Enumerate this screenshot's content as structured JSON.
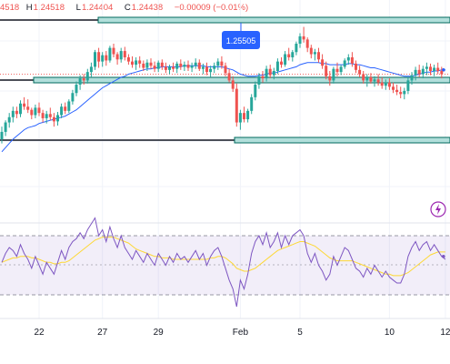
{
  "header": {
    "open_label": "",
    "open_value": "4518",
    "high_label": "H",
    "high_value": "1.24518",
    "low_label": "L",
    "low_value": "1.24404",
    "close_label": "C",
    "close_value": "1.24438",
    "change": "−0.00009 (−0.01%)"
  },
  "chart_data": {
    "type": "candlestick",
    "price_label": "1.25505",
    "x_tick_labels": [
      "22",
      "27",
      "29",
      "Feb",
      "5",
      "10",
      "12"
    ],
    "x_tick_index": [
      10,
      27,
      42,
      64,
      80,
      104,
      119
    ],
    "ohlc": [
      [
        1.2393,
        1.2405,
        1.2389,
        1.24
      ],
      [
        1.24,
        1.2411,
        1.2396,
        1.2409
      ],
      [
        1.2409,
        1.2418,
        1.2404,
        1.2414
      ],
      [
        1.2414,
        1.2424,
        1.2409,
        1.242
      ],
      [
        1.242,
        1.2424,
        1.2413,
        1.2417
      ],
      [
        1.2417,
        1.243,
        1.2414,
        1.2427
      ],
      [
        1.2427,
        1.2433,
        1.2421,
        1.2424
      ],
      [
        1.2424,
        1.2431,
        1.2418,
        1.2421
      ],
      [
        1.2421,
        1.2423,
        1.2412,
        1.2416
      ],
      [
        1.2416,
        1.2426,
        1.2413,
        1.2423
      ],
      [
        1.2423,
        1.2428,
        1.2415,
        1.2418
      ],
      [
        1.2418,
        1.2421,
        1.2409,
        1.2413
      ],
      [
        1.2413,
        1.242,
        1.2408,
        1.2417
      ],
      [
        1.2417,
        1.2423,
        1.2411,
        1.2414
      ],
      [
        1.2414,
        1.2418,
        1.2405,
        1.241
      ],
      [
        1.241,
        1.2419,
        1.2406,
        1.2416
      ],
      [
        1.2416,
        1.2427,
        1.2413,
        1.2424
      ],
      [
        1.2424,
        1.2428,
        1.2417,
        1.242
      ],
      [
        1.242,
        1.2431,
        1.2418,
        1.2429
      ],
      [
        1.2429,
        1.244,
        1.2426,
        1.2437
      ],
      [
        1.2437,
        1.2448,
        1.2434,
        1.2445
      ],
      [
        1.2445,
        1.2454,
        1.244,
        1.2451
      ],
      [
        1.2451,
        1.2455,
        1.2445,
        1.2449
      ],
      [
        1.2449,
        1.246,
        1.2446,
        1.2457
      ],
      [
        1.2457,
        1.2466,
        1.2452,
        1.2462
      ],
      [
        1.2462,
        1.2478,
        1.2459,
        1.2476
      ],
      [
        1.2476,
        1.248,
        1.2461,
        1.2467
      ],
      [
        1.2467,
        1.2476,
        1.2462,
        1.2473
      ],
      [
        1.2473,
        1.2477,
        1.2463,
        1.2468
      ],
      [
        1.2468,
        1.2482,
        1.2466,
        1.248
      ],
      [
        1.248,
        1.2484,
        1.2471,
        1.2474
      ],
      [
        1.2474,
        1.2476,
        1.2464,
        1.2469
      ],
      [
        1.2469,
        1.248,
        1.2466,
        1.2477
      ],
      [
        1.2477,
        1.2481,
        1.2468,
        1.2471
      ],
      [
        1.2471,
        1.2474,
        1.2464,
        1.2467
      ],
      [
        1.2467,
        1.2472,
        1.2461,
        1.2464
      ],
      [
        1.2464,
        1.2471,
        1.2459,
        1.2468
      ],
      [
        1.2468,
        1.2472,
        1.2461,
        1.2465
      ],
      [
        1.2465,
        1.2468,
        1.2458,
        1.2461
      ],
      [
        1.2461,
        1.2469,
        1.2458,
        1.2466
      ],
      [
        1.2466,
        1.247,
        1.246,
        1.2463
      ],
      [
        1.2463,
        1.2467,
        1.2457,
        1.246
      ],
      [
        1.246,
        1.2468,
        1.2457,
        1.2466
      ],
      [
        1.2466,
        1.2469,
        1.2459,
        1.2462
      ],
      [
        1.2462,
        1.2466,
        1.2456,
        1.2459
      ],
      [
        1.2459,
        1.2464,
        1.2455,
        1.2462
      ],
      [
        1.2462,
        1.2466,
        1.2457,
        1.246
      ],
      [
        1.246,
        1.2467,
        1.2456,
        1.2465
      ],
      [
        1.2465,
        1.2469,
        1.2459,
        1.2462
      ],
      [
        1.2462,
        1.2467,
        1.2458,
        1.2464
      ],
      [
        1.2464,
        1.2468,
        1.2458,
        1.2461
      ],
      [
        1.2461,
        1.2466,
        1.2457,
        1.2463
      ],
      [
        1.2463,
        1.247,
        1.246,
        1.2466
      ],
      [
        1.2466,
        1.2469,
        1.2458,
        1.246
      ],
      [
        1.246,
        1.2465,
        1.2455,
        1.2462
      ],
      [
        1.2462,
        1.2466,
        1.2454,
        1.2457
      ],
      [
        1.2457,
        1.2463,
        1.2452,
        1.246
      ],
      [
        1.246,
        1.2466,
        1.2456,
        1.2463
      ],
      [
        1.2463,
        1.247,
        1.2459,
        1.2467
      ],
      [
        1.2467,
        1.2472,
        1.246,
        1.2463
      ],
      [
        1.2463,
        1.2466,
        1.2453,
        1.2456
      ],
      [
        1.2456,
        1.246,
        1.2447,
        1.2449
      ],
      [
        1.2449,
        1.2453,
        1.2438,
        1.2441
      ],
      [
        1.2441,
        1.2446,
        1.2405,
        1.2409
      ],
      [
        1.2409,
        1.2421,
        1.2402,
        1.2418
      ],
      [
        1.2418,
        1.2424,
        1.2409,
        1.2412
      ],
      [
        1.2412,
        1.2422,
        1.2409,
        1.242
      ],
      [
        1.242,
        1.2436,
        1.2417,
        1.2433
      ],
      [
        1.2433,
        1.2448,
        1.243,
        1.2445
      ],
      [
        1.2445,
        1.2456,
        1.2441,
        1.2453
      ],
      [
        1.2453,
        1.2458,
        1.2447,
        1.2451
      ],
      [
        1.2451,
        1.2463,
        1.2448,
        1.246
      ],
      [
        1.246,
        1.2464,
        1.2451,
        1.2454
      ],
      [
        1.2454,
        1.2461,
        1.245,
        1.2458
      ],
      [
        1.2458,
        1.247,
        1.2455,
        1.2467
      ],
      [
        1.2467,
        1.2471,
        1.2461,
        1.2464
      ],
      [
        1.2464,
        1.2477,
        1.2462,
        1.2474
      ],
      [
        1.2474,
        1.248,
        1.2468,
        1.2471
      ],
      [
        1.2471,
        1.2478,
        1.2467,
        1.2476
      ],
      [
        1.2476,
        1.2486,
        1.2473,
        1.2484
      ],
      [
        1.2484,
        1.2494,
        1.248,
        1.2491
      ],
      [
        1.2491,
        1.25,
        1.2485,
        1.2488
      ],
      [
        1.2488,
        1.249,
        1.2476,
        1.248
      ],
      [
        1.248,
        1.2483,
        1.247,
        1.2474
      ],
      [
        1.2474,
        1.2479,
        1.2468,
        1.2476
      ],
      [
        1.2476,
        1.248,
        1.2466,
        1.2469
      ],
      [
        1.2469,
        1.2474,
        1.246,
        1.2463
      ],
      [
        1.2463,
        1.2467,
        1.245,
        1.2453
      ],
      [
        1.2453,
        1.2458,
        1.2444,
        1.2449
      ],
      [
        1.2449,
        1.2462,
        1.2446,
        1.246
      ],
      [
        1.246,
        1.2466,
        1.2453,
        1.2457
      ],
      [
        1.2457,
        1.2464,
        1.2454,
        1.2462
      ],
      [
        1.2462,
        1.247,
        1.246,
        1.2468
      ],
      [
        1.2468,
        1.2474,
        1.2464,
        1.2471
      ],
      [
        1.2471,
        1.2476,
        1.2462,
        1.2465
      ],
      [
        1.2465,
        1.2468,
        1.2456,
        1.2459
      ],
      [
        1.2459,
        1.2463,
        1.2452,
        1.2455
      ],
      [
        1.2455,
        1.2458,
        1.2446,
        1.2449
      ],
      [
        1.2449,
        1.2455,
        1.2443,
        1.2452
      ],
      [
        1.2452,
        1.2456,
        1.2446,
        1.2448
      ],
      [
        1.2448,
        1.2453,
        1.2443,
        1.245
      ],
      [
        1.245,
        1.2455,
        1.2444,
        1.2447
      ],
      [
        1.2447,
        1.2452,
        1.2441,
        1.2444
      ],
      [
        1.2444,
        1.245,
        1.244,
        1.2447
      ],
      [
        1.2447,
        1.2451,
        1.244,
        1.2443
      ],
      [
        1.2443,
        1.2447,
        1.2437,
        1.244
      ],
      [
        1.244,
        1.2445,
        1.2435,
        1.2438
      ],
      [
        1.2438,
        1.2443,
        1.2432,
        1.2436
      ],
      [
        1.2436,
        1.2442,
        1.2431,
        1.2439
      ],
      [
        1.2439,
        1.2452,
        1.2436,
        1.2449
      ],
      [
        1.2449,
        1.2457,
        1.2445,
        1.2454
      ],
      [
        1.2454,
        1.2462,
        1.2449,
        1.2459
      ],
      [
        1.2459,
        1.2464,
        1.2452,
        1.2455
      ],
      [
        1.2455,
        1.2463,
        1.2451,
        1.246
      ],
      [
        1.246,
        1.2466,
        1.2454,
        1.2462
      ],
      [
        1.2462,
        1.2465,
        1.2454,
        1.2458
      ],
      [
        1.2458,
        1.2464,
        1.2453,
        1.2461
      ],
      [
        1.2461,
        1.2466,
        1.2455,
        1.2458
      ],
      [
        1.2458,
        1.2462,
        1.2451,
        1.2455
      ]
    ],
    "ma": [
      1.2381,
      1.2385,
      1.2389,
      1.2393,
      1.2396,
      1.2399,
      1.2402,
      1.2404,
      1.2405,
      1.2406,
      1.2408,
      1.2409,
      1.241,
      1.2411,
      1.2412,
      1.2413,
      1.2414,
      1.2415,
      1.2417,
      1.2419,
      1.2421,
      1.2424,
      1.2427,
      1.243,
      1.2433,
      1.2436,
      1.2439,
      1.2442,
      1.2444,
      1.2446,
      1.2448,
      1.245,
      1.2452,
      1.2453,
      1.2455,
      1.2456,
      1.2457,
      1.2458,
      1.2459,
      1.246,
      1.246,
      1.2461,
      1.2461,
      1.2462,
      1.2462,
      1.2462,
      1.2462,
      1.2462,
      1.2462,
      1.2463,
      1.2463,
      1.2463,
      1.2463,
      1.2463,
      1.2463,
      1.2462,
      1.2462,
      1.2462,
      1.2462,
      1.2462,
      1.2461,
      1.246,
      1.2459,
      1.2457,
      1.2455,
      1.2454,
      1.2453,
      1.2453,
      1.2453,
      1.2454,
      1.2454,
      1.2455,
      1.2456,
      1.2456,
      1.2457,
      1.2458,
      1.2459,
      1.246,
      1.2461,
      1.2462,
      1.2464,
      1.2465,
      1.2466,
      1.2466,
      1.2466,
      1.2466,
      1.2465,
      1.2465,
      1.2464,
      1.2464,
      1.2464,
      1.2464,
      1.2464,
      1.2465,
      1.2465,
      1.2464,
      1.2464,
      1.2463,
      1.2462,
      1.2461,
      1.2461,
      1.246,
      1.2459,
      1.2458,
      1.2457,
      1.2456,
      1.2455,
      1.2454,
      1.2453,
      1.2453,
      1.2453,
      1.2454,
      1.2455,
      1.2456,
      1.2457,
      1.2457,
      1.2458,
      1.2458,
      1.2459,
      1.2459
    ],
    "rsi": [
      52,
      58,
      62,
      60,
      56,
      64,
      58,
      54,
      48,
      56,
      50,
      44,
      52,
      48,
      44,
      52,
      60,
      54,
      62,
      66,
      68,
      72,
      68,
      74,
      78,
      82,
      70,
      74,
      66,
      76,
      68,
      62,
      70,
      62,
      58,
      54,
      60,
      56,
      52,
      58,
      54,
      50,
      58,
      54,
      50,
      56,
      52,
      58,
      54,
      56,
      52,
      56,
      60,
      54,
      58,
      50,
      56,
      60,
      62,
      56,
      48,
      40,
      34,
      22,
      40,
      34,
      44,
      58,
      66,
      70,
      64,
      72,
      62,
      66,
      72,
      62,
      70,
      64,
      70,
      72,
      74,
      70,
      58,
      52,
      58,
      50,
      46,
      40,
      44,
      56,
      50,
      56,
      62,
      60,
      54,
      48,
      46,
      42,
      48,
      44,
      50,
      46,
      42,
      46,
      42,
      40,
      38,
      38,
      44,
      56,
      62,
      66,
      60,
      64,
      66,
      60,
      64,
      60,
      56,
      54
    ],
    "rsi_ma": [
      52,
      53,
      54,
      55,
      55,
      56,
      56,
      56,
      55,
      55,
      54,
      53,
      52,
      52,
      51,
      51,
      52,
      52,
      53,
      55,
      57,
      59,
      61,
      63,
      65,
      67,
      68,
      69,
      69,
      69,
      69,
      68,
      67,
      66,
      65,
      63,
      61,
      60,
      59,
      58,
      57,
      56,
      56,
      55,
      55,
      55,
      54,
      54,
      54,
      54,
      54,
      54,
      54,
      54,
      54,
      54,
      55,
      55,
      56,
      56,
      55,
      53,
      51,
      48,
      47,
      46,
      46,
      47,
      48,
      50,
      52,
      54,
      56,
      58,
      60,
      61,
      62,
      63,
      64,
      65,
      66,
      66,
      65,
      64,
      63,
      61,
      59,
      57,
      55,
      54,
      53,
      53,
      53,
      53,
      53,
      52,
      51,
      50,
      49,
      48,
      47,
      46,
      45,
      44,
      44,
      43,
      43,
      43,
      44,
      45,
      47,
      49,
      51,
      53,
      55,
      57,
      58,
      59,
      59,
      59
    ]
  }
}
